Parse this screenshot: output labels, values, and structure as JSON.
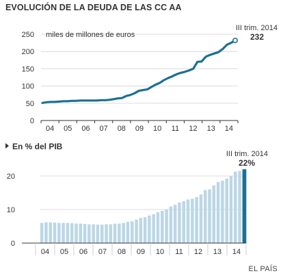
{
  "title": "EVOLUCIÓN DE LA DEUDA DE LAS CC AA",
  "source": "EL PAÍS",
  "colors": {
    "line": "#1c6f93",
    "bar": "#bcd7e6",
    "bar_highlight": "#1c6f93",
    "axis": "#333333",
    "grid": "#dcdcdc"
  },
  "chart_data": [
    {
      "type": "line",
      "title": "EVOLUCIÓN DE LA DEUDA DE LAS CC AA",
      "unit_label": "miles de millones de euros",
      "x_tick_labels": [
        "04",
        "05",
        "06",
        "07",
        "08",
        "09",
        "10",
        "11",
        "12",
        "13",
        "14"
      ],
      "y_ticks": [
        0,
        50,
        100,
        150,
        200,
        250
      ],
      "ylim": [
        0,
        250
      ],
      "annotation": {
        "label": "III trim. 2014",
        "value_label": "232"
      },
      "series": [
        {
          "values": [
            51,
            53,
            54,
            54,
            55,
            56,
            56,
            57,
            57,
            58,
            58,
            58,
            58,
            58,
            59,
            59,
            60,
            62,
            64,
            65,
            71,
            74,
            79,
            86,
            88,
            90,
            97,
            104,
            109,
            117,
            123,
            128,
            134,
            138,
            141,
            145,
            150,
            170,
            171,
            185,
            190,
            194,
            198,
            207,
            219,
            225,
            232
          ]
        }
      ]
    },
    {
      "type": "bar",
      "title": "En % del PIB",
      "x_tick_labels": [
        "04",
        "05",
        "06",
        "07",
        "08",
        "09",
        "10",
        "11",
        "12",
        "13",
        "14"
      ],
      "y_ticks": [
        0,
        10,
        20
      ],
      "ylim": [
        0,
        22
      ],
      "annotation": {
        "label": "III trim. 2014",
        "value_label": "22%"
      },
      "series": [
        {
          "values": [
            6.0,
            6.2,
            6.2,
            6.1,
            6.0,
            6.0,
            6.0,
            5.9,
            5.8,
            5.8,
            5.7,
            5.6,
            5.6,
            5.5,
            5.5,
            5.6,
            5.6,
            5.8,
            5.8,
            6.0,
            6.3,
            6.5,
            7.0,
            7.5,
            7.7,
            8.2,
            8.6,
            9.2,
            9.6,
            10.0,
            10.9,
            11.4,
            12.1,
            12.5,
            13.0,
            13.2,
            13.7,
            14.5,
            15.8,
            16.0,
            17.2,
            18.2,
            18.6,
            19.2,
            20.0,
            21.3,
            21.5,
            22.0
          ]
        }
      ]
    }
  ]
}
